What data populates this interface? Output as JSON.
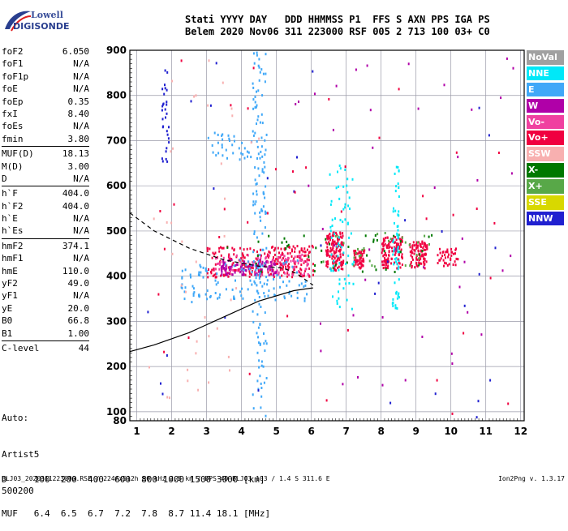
{
  "logo": {
    "line1": "Lowell",
    "line2": "DIGISONDE"
  },
  "header": {
    "labels": "Stati YYYY DAY   DDD HHMMSS P1  FFS S AXN PPS IGA PS",
    "values": "Belem 2020 Nov06 311 223000 RSF 005 2 713 100 03+ C0"
  },
  "params": [
    {
      "name": "foF2",
      "value": "6.050"
    },
    {
      "name": "foF1",
      "value": "N/A"
    },
    {
      "name": "foF1p",
      "value": "N/A"
    },
    {
      "name": "foE",
      "value": "N/A"
    },
    {
      "name": "foEp",
      "value": "0.35"
    },
    {
      "name": "fxI",
      "value": "8.40"
    },
    {
      "name": "foEs",
      "value": "N/A"
    },
    {
      "name": "fmin",
      "value": "3.80"
    },
    {
      "sep": true
    },
    {
      "name": "MUF(D)",
      "value": "18.13"
    },
    {
      "name": "M(D)",
      "value": "3.00"
    },
    {
      "name": "D",
      "value": "N/A"
    },
    {
      "sep": true
    },
    {
      "name": "h`F",
      "value": "404.0"
    },
    {
      "name": "h`F2",
      "value": "404.0"
    },
    {
      "name": "h`E",
      "value": "N/A"
    },
    {
      "name": "h`Es",
      "value": "N/A"
    },
    {
      "sep": true
    },
    {
      "name": "hmF2",
      "value": "374.1"
    },
    {
      "name": "hmF1",
      "value": "N/A"
    },
    {
      "name": "hmE",
      "value": "110.0"
    },
    {
      "name": "yF2",
      "value": "49.0"
    },
    {
      "name": "yF1",
      "value": "N/A"
    },
    {
      "name": "yE",
      "value": "20.0"
    },
    {
      "name": "B0",
      "value": "66.8"
    },
    {
      "name": "B1",
      "value": "1.00"
    },
    {
      "sep": true
    },
    {
      "name": "C-level",
      "value": "44"
    }
  ],
  "auto": {
    "line1": "Auto:",
    "line2": "Artist5",
    "line3": "500200"
  },
  "dmuf": {
    "d_line": "D     100  200  400  600  800 1000 1500 3000 [km]",
    "muf_line": "MUF   6.4  6.5  6.7  7.2  7.8  8.7 11.4 18.1 [MHz]"
  },
  "footer": "BLJ03_2020311223000.RSF / 224fx512h 50 kHz 2.5 km / DPS-4D BLJ03 103 / 1.4 S 311.6 E",
  "version": "Ion2Png v. 1.3.17",
  "legend": [
    {
      "label": "NoVal",
      "color": "#a0a0a0"
    },
    {
      "label": "NNE",
      "color": "#00e8f8"
    },
    {
      "label": "E",
      "color": "#40a8f8"
    },
    {
      "label": "W",
      "color": "#b000a8"
    },
    {
      "label": "Vo-",
      "color": "#f040a0"
    },
    {
      "label": "Vo+",
      "color": "#f00040"
    },
    {
      "label": "SSW",
      "color": "#f8b0b0"
    },
    {
      "label": "X-",
      "color": "#007800"
    },
    {
      "label": "X+",
      "color": "#58a848"
    },
    {
      "label": "SSE",
      "color": "#d8d800"
    },
    {
      "label": "NNW",
      "color": "#2020d0"
    }
  ],
  "chart_data": {
    "type": "scatter",
    "xlim": [
      0.8,
      12.1
    ],
    "ylim": [
      80,
      900
    ],
    "x_ticks": [
      1,
      2,
      3,
      4,
      5,
      6,
      7,
      8,
      9,
      10,
      11,
      12
    ],
    "y_ticks": [
      100,
      200,
      300,
      400,
      500,
      600,
      700,
      800,
      900
    ],
    "grid": true,
    "curves": {
      "true_height_solid": {
        "x": [
          0.8,
          1.5,
          2.5,
          3.5,
          4.5,
          5.5,
          6.05
        ],
        "y": [
          233,
          248,
          275,
          310,
          345,
          368,
          374
        ]
      },
      "dashed": {
        "x": [
          0.8,
          1.5,
          2.5,
          3.5,
          4.5,
          5.2,
          5.6,
          6.05
        ],
        "y": [
          540,
          500,
          462,
          436,
          422,
          418,
          405,
          380
        ]
      }
    },
    "point_clusters": [
      {
        "color": "#f00040",
        "x_range": [
          3.0,
          6.05
        ],
        "y_range": [
          400,
          470
        ],
        "n": 260
      },
      {
        "color": "#f040a0",
        "x_range": [
          3.2,
          5.9
        ],
        "y_range": [
          405,
          450
        ],
        "n": 120
      },
      {
        "color": "#b000a8",
        "x_range": [
          3.4,
          5.0
        ],
        "y_range": [
          405,
          440
        ],
        "n": 90
      },
      {
        "color": "#f00040",
        "x_range": [
          6.4,
          6.9
        ],
        "y_range": [
          415,
          500
        ],
        "n": 140
      },
      {
        "color": "#f00040",
        "x_range": [
          7.2,
          7.5
        ],
        "y_range": [
          420,
          460
        ],
        "n": 50
      },
      {
        "color": "#f00040",
        "x_range": [
          8.0,
          8.6
        ],
        "y_range": [
          420,
          490
        ],
        "n": 120
      },
      {
        "color": "#f00040",
        "x_range": [
          8.8,
          9.3
        ],
        "y_range": [
          420,
          480
        ],
        "n": 90
      },
      {
        "color": "#f00040",
        "x_range": [
          9.6,
          10.2
        ],
        "y_range": [
          425,
          465
        ],
        "n": 40
      },
      {
        "color": "#007800",
        "x_range": [
          3.5,
          9.5
        ],
        "y_range": [
          410,
          500
        ],
        "n": 45
      },
      {
        "color": "#58a848",
        "x_range": [
          6.3,
          9.4
        ],
        "y_range": [
          420,
          500
        ],
        "n": 30
      },
      {
        "color": "#40a8f8",
        "x_range": [
          2.2,
          5.9
        ],
        "y_range": [
          345,
          440
        ],
        "n": 120
      },
      {
        "color": "#40a8f8",
        "x_range": [
          4.3,
          4.7
        ],
        "y_range": [
          90,
          900
        ],
        "n": 140
      },
      {
        "color": "#00e8f8",
        "x_range": [
          6.5,
          7.2
        ],
        "y_range": [
          330,
          650
        ],
        "n": 70
      },
      {
        "color": "#00e8f8",
        "x_range": [
          8.3,
          8.5
        ],
        "y_range": [
          330,
          650
        ],
        "n": 60
      },
      {
        "color": "#40a8f8",
        "x_range": [
          3.0,
          4.5
        ],
        "y_range": [
          660,
          720
        ],
        "n": 40
      },
      {
        "color": "#2020d0",
        "x_range": [
          1.7,
          1.9
        ],
        "y_range": [
          650,
          860
        ],
        "n": 30
      },
      {
        "color": "#b000a8",
        "x_range": [
          5.5,
          12.0
        ],
        "y_range": [
          150,
          900
        ],
        "n": 45
      },
      {
        "color": "#f8b0b0",
        "x_range": [
          1.0,
          4.5
        ],
        "y_range": [
          110,
          900
        ],
        "n": 40
      },
      {
        "color": "#2020d0",
        "x_range": [
          1.0,
          12.0
        ],
        "y_range": [
          90,
          900
        ],
        "n": 30
      },
      {
        "color": "#f00040",
        "x_range": [
          1.5,
          12.0
        ],
        "y_range": [
          90,
          900
        ],
        "n": 40
      }
    ]
  }
}
